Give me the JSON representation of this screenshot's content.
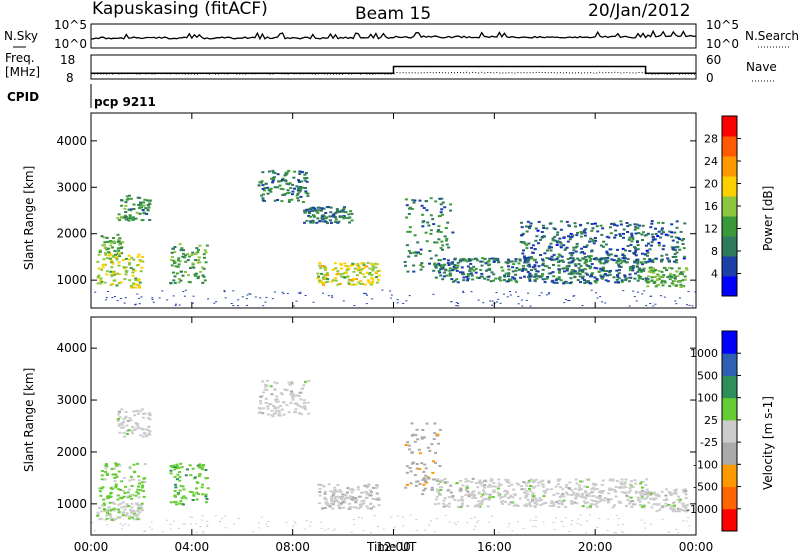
{
  "header": {
    "station": "Kapuskasing (fitACF)",
    "beam": "Beam 15",
    "date": "20/Jan/2012"
  },
  "top_panels": {
    "nsky_label": "N.Sky",
    "nsky_ticks": [
      "10^5",
      "10^0"
    ],
    "nsearch_label": "N.Search",
    "nsearch_ticks": [
      "10^5",
      "10^0"
    ],
    "freq_label": "Freq.",
    "freq_unit": "[MHz]",
    "freq_ticks": [
      "18",
      "8"
    ],
    "nave_label": "Nave",
    "nave_ticks": [
      "60",
      "0"
    ],
    "cpid_label": "CPID",
    "cpid_value": "pcp 9211"
  },
  "colors": {
    "power_scale": [
      "#0000ff",
      "#1c3fa8",
      "#2f7a5a",
      "#3a9a3a",
      "#8dc63f",
      "#ffd000",
      "#ff9900",
      "#ff5a00",
      "#ff0000"
    ],
    "velocity_scale": [
      "#ff0000",
      "#ff6600",
      "#ff9900",
      "#aaaaaa",
      "#cccccc",
      "#66cc33",
      "#2f8f5a",
      "#2f5fb3",
      "#0000ff"
    ]
  },
  "chart_data": [
    {
      "type": "heatmap",
      "name": "power",
      "ylabel": "Slant Range [km]",
      "yticks": [
        "4000",
        "3000",
        "2000",
        "1000"
      ],
      "ylim": [
        400,
        4600
      ],
      "xlim": [
        0,
        24
      ],
      "colorbar_label": "Power [dB]",
      "colorbar_ticks": [
        "28",
        "24",
        "20",
        "16",
        "12",
        "8",
        "4"
      ],
      "colorbar_range": [
        0,
        30
      ],
      "echo_regions": [
        {
          "t0": 0.3,
          "t1": 1.2,
          "r0": 1500,
          "r1": 2000,
          "v": 12
        },
        {
          "t0": 1.0,
          "t1": 2.3,
          "r0": 2300,
          "r1": 2850,
          "v": 10
        },
        {
          "t0": 0.2,
          "t1": 2.0,
          "r0": 850,
          "r1": 1600,
          "v": 16
        },
        {
          "t0": 3.1,
          "t1": 4.6,
          "r0": 950,
          "r1": 1800,
          "v": 12
        },
        {
          "t0": 6.6,
          "t1": 8.6,
          "r0": 2700,
          "r1": 3400,
          "v": 9
        },
        {
          "t0": 8.4,
          "t1": 10.3,
          "r0": 2250,
          "r1": 2600,
          "v": 8
        },
        {
          "t0": 8.9,
          "t1": 11.4,
          "r0": 920,
          "r1": 1400,
          "v": 17
        },
        {
          "t0": 12.4,
          "t1": 14.3,
          "r0": 1200,
          "r1": 2800,
          "v": 9
        },
        {
          "t0": 13.6,
          "t1": 22.0,
          "r0": 950,
          "r1": 1500,
          "v": 8
        },
        {
          "t0": 17.0,
          "t1": 23.5,
          "r0": 1400,
          "r1": 2300,
          "v": 7
        },
        {
          "t0": 22.0,
          "t1": 23.6,
          "r0": 870,
          "r1": 1300,
          "v": 12
        }
      ]
    },
    {
      "type": "heatmap",
      "name": "velocity",
      "ylabel": "Slant Range [km]",
      "yticks": [
        "4000",
        "3000",
        "2000",
        "1000"
      ],
      "ylim": [
        400,
        4600
      ],
      "xlim": [
        0,
        24
      ],
      "xlabel": "Time UT",
      "xticks": [
        "00:00",
        "04:00",
        "08:00",
        "12:00",
        "16:00",
        "20:00",
        "00:00"
      ],
      "colorbar_label": "Velocity [m s-1]",
      "colorbar_ticks": [
        "1000",
        "500",
        "100",
        "25",
        "-25",
        "-100",
        "-500",
        "-1000"
      ],
      "colorbar_range": [
        -1200,
        1200
      ],
      "echo_regions": [
        {
          "t0": 0.3,
          "t1": 2.1,
          "r0": 1100,
          "r1": 1800,
          "v": 200
        },
        {
          "t0": 0.2,
          "t1": 2.0,
          "r0": 700,
          "r1": 1050,
          "v": 60
        },
        {
          "t0": 3.1,
          "t1": 4.6,
          "r0": 1000,
          "r1": 1800,
          "v": 300
        },
        {
          "t0": 1.0,
          "t1": 2.3,
          "r0": 2300,
          "r1": 2850,
          "v": 0
        },
        {
          "t0": 6.6,
          "t1": 8.6,
          "r0": 2700,
          "r1": 3400,
          "v": 0
        },
        {
          "t0": 8.9,
          "t1": 11.4,
          "r0": 920,
          "r1": 1400,
          "v": -60
        },
        {
          "t0": 12.4,
          "t1": 13.8,
          "r0": 1200,
          "r1": 2600,
          "v": -300
        },
        {
          "t0": 13.6,
          "t1": 22.0,
          "r0": 950,
          "r1": 1500,
          "v": 0
        },
        {
          "t0": 22.0,
          "t1": 23.6,
          "r0": 870,
          "r1": 1300,
          "v": 0
        }
      ]
    }
  ],
  "freq_series": {
    "segments": [
      {
        "t0": 0,
        "t1": 12,
        "freq": 10.4,
        "nave": 14
      },
      {
        "t0": 12,
        "t1": 22,
        "freq": 13.2,
        "nave": 17
      },
      {
        "t0": 22,
        "t1": 24,
        "freq": 10.4,
        "nave": 14
      }
    ]
  }
}
